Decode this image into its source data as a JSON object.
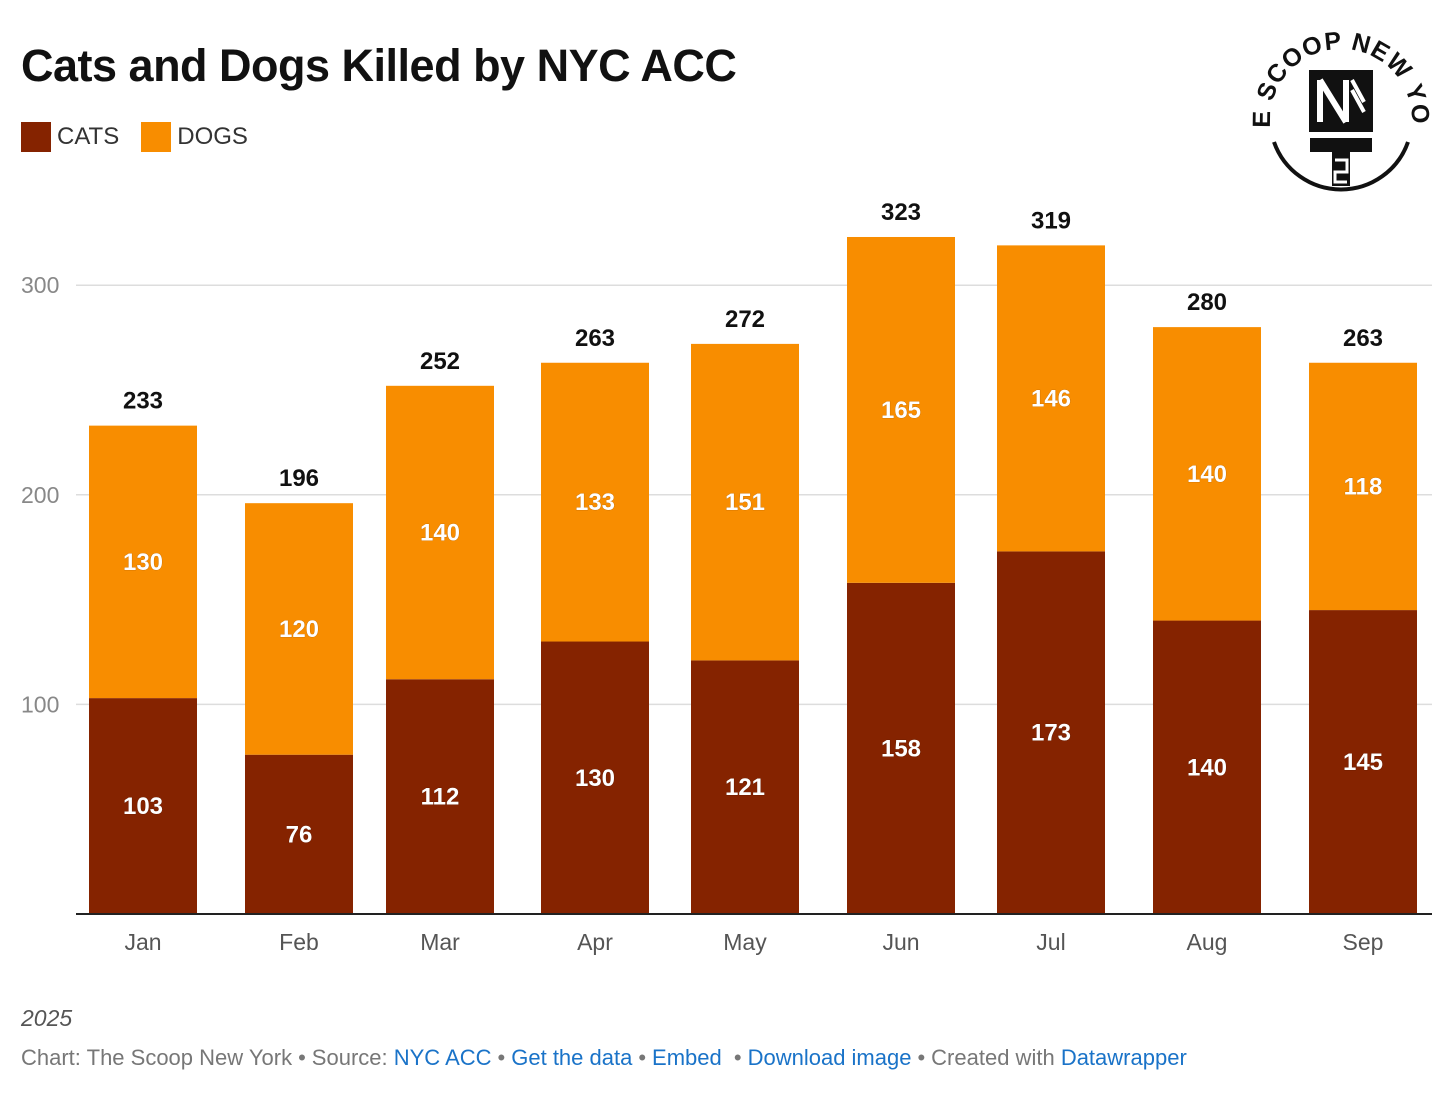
{
  "title": "Cats and Dogs Killed by NYC ACC",
  "colors": {
    "cats": "#852300",
    "dogs": "#f88d00",
    "grid": "#dddddd",
    "axis": "#222222",
    "link": "#1a73c8"
  },
  "logo": {
    "text": "THE SCOOP NEW YORK",
    "icon": "nyts-monogram-icon"
  },
  "chart_data": {
    "type": "bar",
    "stacked": true,
    "title": "Cats and Dogs Killed by NYC ACC",
    "categories": [
      "Jan",
      "Feb",
      "Mar",
      "Apr",
      "May",
      "Jun",
      "Jul",
      "Aug",
      "Sep"
    ],
    "series": [
      {
        "name": "CATS",
        "values": [
          103,
          76,
          112,
          130,
          121,
          158,
          173,
          140,
          145
        ]
      },
      {
        "name": "DOGS",
        "values": [
          130,
          120,
          140,
          133,
          151,
          165,
          146,
          140,
          118
        ]
      }
    ],
    "totals": [
      233,
      196,
      252,
      263,
      272,
      323,
      319,
      280,
      263
    ],
    "yticks": [
      100,
      200,
      300
    ],
    "ylim": [
      0,
      350
    ],
    "grid": true,
    "legend_position": "top-left",
    "xlabel": "",
    "ylabel": ""
  },
  "note": "2025",
  "footer": {
    "chart_prefix": "Chart: The Scoop New York",
    "source_prefix": "Source:",
    "source_link": "NYC ACC",
    "get_data": "Get the data",
    "embed": "Embed",
    "download": "Download image",
    "created_prefix": "Created with",
    "created_link": "Datawrapper"
  }
}
